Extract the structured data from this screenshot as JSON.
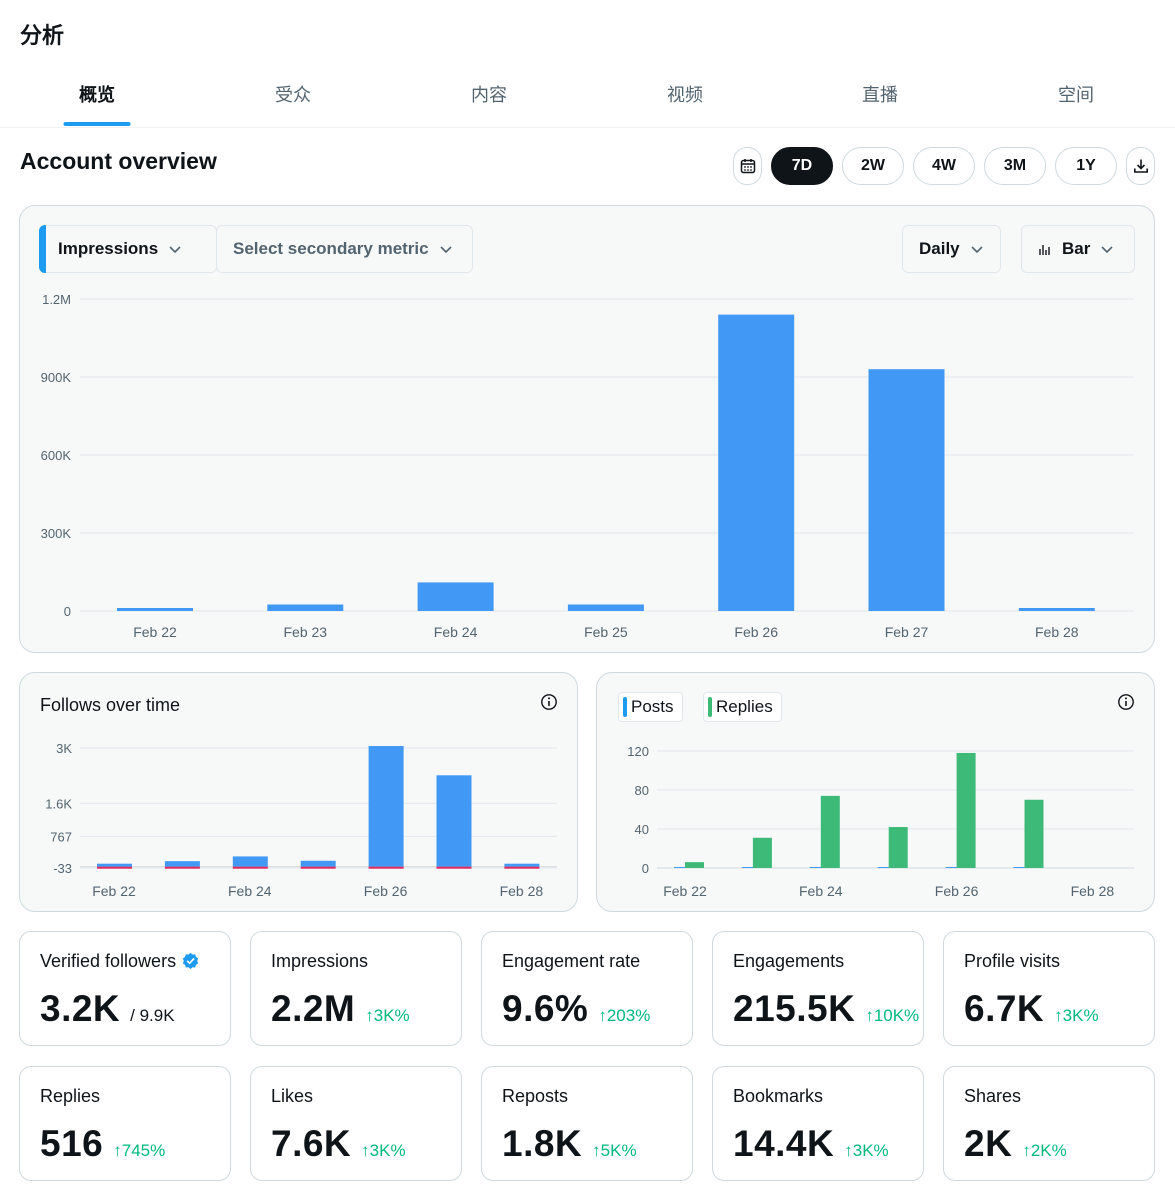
{
  "page_title": "分析",
  "tabs": [
    "概览",
    "受众",
    "内容",
    "视频",
    "直播",
    "空间"
  ],
  "active_tab": 0,
  "section_title": "Account overview",
  "ranges": [
    "7D",
    "2W",
    "4W",
    "3M",
    "1Y"
  ],
  "active_range": "7D",
  "icons": {
    "calendar": "calendar-icon",
    "download": "download-icon",
    "info": "info-icon",
    "bar_chart": "bar-chart-icon",
    "chevron": "chevron-down-icon",
    "verified": "verified-badge-icon"
  },
  "colors": {
    "accent": "#1d9bf0",
    "chart_blue": "#4299f5",
    "chart_green": "#3dba78",
    "positive": "#00ba7c",
    "negative_marker": "#e0245e"
  },
  "main_controls": {
    "primary_metric": "Impressions",
    "secondary_metric": "Select secondary metric",
    "interval": "Daily",
    "chart_type": "Bar"
  },
  "follows_card": {
    "title": "Follows over time"
  },
  "posts_card": {
    "legend": [
      "Posts",
      "Replies"
    ]
  },
  "chart_data": [
    {
      "type": "bar",
      "title": "",
      "categories": [
        "Feb 22",
        "Feb 23",
        "Feb 24",
        "Feb 25",
        "Feb 26",
        "Feb 27",
        "Feb 28"
      ],
      "series": [
        {
          "name": "Impressions",
          "values": [
            8000,
            25000,
            110000,
            25000,
            1140000,
            930000,
            10000
          ]
        }
      ],
      "yticks": [
        "1.2M",
        "900K",
        "600K",
        "300K",
        "0"
      ],
      "ylim": [
        0,
        1200000
      ],
      "grid": true
    },
    {
      "type": "bar",
      "title": "Follows over time",
      "categories": [
        "Feb 22",
        "Feb 23",
        "Feb 24",
        "Feb 25",
        "Feb 26",
        "Feb 27",
        "Feb 28"
      ],
      "xticks": [
        "Feb 22",
        "Feb 24",
        "Feb 26",
        "Feb 28"
      ],
      "series": [
        {
          "name": "Follows",
          "values": [
            20,
            140,
            260,
            150,
            3050,
            2310,
            40
          ]
        },
        {
          "name": "Unfollows",
          "values": [
            -5,
            -5,
            -5,
            -10,
            -20,
            -20,
            -5
          ]
        }
      ],
      "yticks": [
        "3K",
        "1.6K",
        "767",
        "-33"
      ],
      "ytick_values": [
        3000,
        1600,
        767,
        -33
      ],
      "ylim": [
        -33,
        3000
      ],
      "grid": true
    },
    {
      "type": "bar",
      "title": "",
      "categories": [
        "Feb 22",
        "Feb 23",
        "Feb 24",
        "Feb 25",
        "Feb 26",
        "Feb 27",
        "Feb 28"
      ],
      "xticks": [
        "Feb 22",
        "Feb 24",
        "Feb 26",
        "Feb 28"
      ],
      "series": [
        {
          "name": "Posts",
          "values": [
            0,
            0,
            0,
            0,
            1,
            1,
            0
          ]
        },
        {
          "name": "Replies",
          "values": [
            6,
            31,
            74,
            42,
            118,
            70,
            0
          ]
        }
      ],
      "yticks": [
        "120",
        "80",
        "40",
        "0"
      ],
      "ytick_values": [
        120,
        80,
        40,
        0
      ],
      "ylim": [
        0,
        120
      ],
      "grid": true
    }
  ],
  "metrics": [
    {
      "label": "Verified followers",
      "value": "3.2K",
      "suffix": "/ 9.9K",
      "change": "",
      "verified": true
    },
    {
      "label": "Impressions",
      "value": "2.2M",
      "change": "↑3K%"
    },
    {
      "label": "Engagement rate",
      "value": "9.6%",
      "change": "↑203%"
    },
    {
      "label": "Engagements",
      "value": "215.5K",
      "change": "↑10K%"
    },
    {
      "label": "Profile visits",
      "value": "6.7K",
      "change": "↑3K%"
    },
    {
      "label": "Replies",
      "value": "516",
      "change": "↑745%"
    },
    {
      "label": "Likes",
      "value": "7.6K",
      "change": "↑3K%"
    },
    {
      "label": "Reposts",
      "value": "1.8K",
      "change": "↑5K%"
    },
    {
      "label": "Bookmarks",
      "value": "14.4K",
      "change": "↑3K%"
    },
    {
      "label": "Shares",
      "value": "2K",
      "change": "↑2K%"
    }
  ]
}
